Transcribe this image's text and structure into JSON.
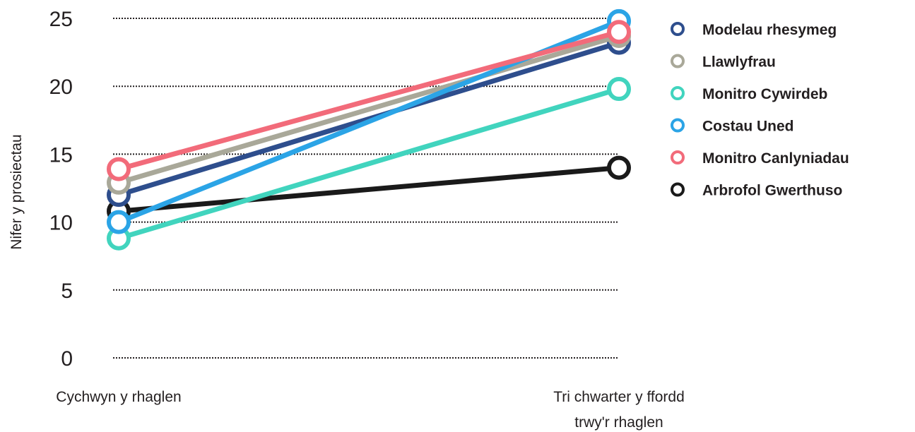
{
  "chart_data": {
    "type": "line",
    "ylabel": "Nifer y prosiectau",
    "ylim": [
      0,
      25
    ],
    "yticks": [
      0,
      5,
      10,
      15,
      20,
      25
    ],
    "grid": true,
    "legend_position": "right",
    "categories": [
      [
        "Cychwyn y rhaglen"
      ],
      [
        "Tri chwarter y ffordd",
        "trwy'r rhaglen"
      ]
    ],
    "series": [
      {
        "name": "Arbrofol Gwerthuso",
        "color": "#1a1a1a",
        "values": [
          10.8,
          14
        ]
      },
      {
        "name": "Modelau rhesymeg",
        "color": "#2e4e8d",
        "values": [
          12,
          23.2
        ]
      },
      {
        "name": "Llawlyfrau",
        "color": "#a9a899",
        "values": [
          12.9,
          23.7
        ]
      },
      {
        "name": "Monitro Cywirdeb",
        "color": "#41d4be",
        "values": [
          8.8,
          19.8
        ]
      },
      {
        "name": "Costau Uned",
        "color": "#2ba4e6",
        "values": [
          10,
          24.8
        ]
      },
      {
        "name": "Monitro Canlyniadau",
        "color": "#f26b7a",
        "values": [
          13.9,
          24
        ]
      }
    ],
    "legend": [
      {
        "label": "Modelau rhesymeg",
        "color": "#2e4e8d"
      },
      {
        "label": "Llawlyfrau",
        "color": "#a9a899"
      },
      {
        "label": "Monitro Cywirdeb",
        "color": "#41d4be"
      },
      {
        "label": "Costau Uned",
        "color": "#2ba4e6"
      },
      {
        "label": "Monitro Canlyniadau",
        "color": "#f26b7a"
      },
      {
        "label": "Arbrofol Gwerthuso",
        "color": "#1a1a1a"
      }
    ]
  }
}
